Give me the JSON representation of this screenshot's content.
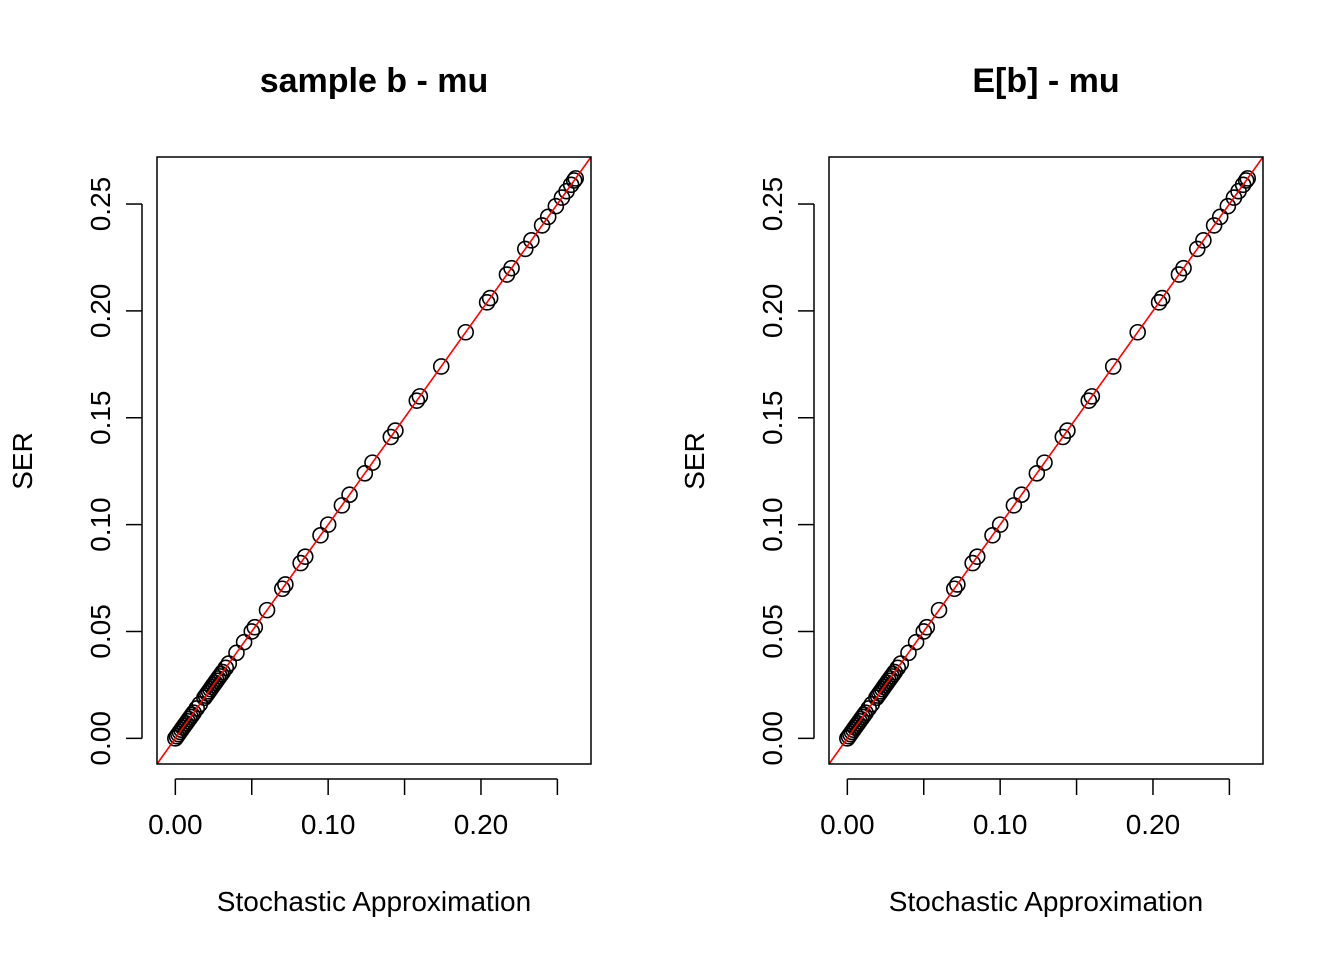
{
  "chart_data": [
    {
      "type": "scatter",
      "title": "sample b - mu",
      "xlabel": "Stochastic Approximation",
      "ylabel": "SER",
      "xlim": [
        -0.012,
        0.272
      ],
      "ylim": [
        -0.012,
        0.272
      ],
      "x_ticks": [
        0.0,
        0.05,
        0.1,
        0.15,
        0.2,
        0.25
      ],
      "x_tick_labels": [
        "0.00",
        "",
        "0.10",
        "",
        "0.20",
        ""
      ],
      "y_ticks": [
        0.0,
        0.05,
        0.1,
        0.15,
        0.2,
        0.25
      ],
      "y_tick_labels": [
        "0.00",
        "0.05",
        "0.10",
        "0.15",
        "0.20",
        "0.25"
      ],
      "reference_line": {
        "type": "abline",
        "intercept": 0,
        "slope": 1,
        "color": "#ff0000"
      },
      "point_style": {
        "shape": "open-circle",
        "color": "#000000"
      },
      "points": [
        [
          0.0,
          0.0
        ],
        [
          0.001,
          0.001
        ],
        [
          0.002,
          0.002
        ],
        [
          0.003,
          0.003
        ],
        [
          0.004,
          0.004
        ],
        [
          0.005,
          0.005
        ],
        [
          0.006,
          0.006
        ],
        [
          0.007,
          0.007
        ],
        [
          0.008,
          0.008
        ],
        [
          0.009,
          0.009
        ],
        [
          0.01,
          0.01
        ],
        [
          0.011,
          0.011
        ],
        [
          0.012,
          0.012
        ],
        [
          0.014,
          0.014
        ],
        [
          0.016,
          0.016
        ],
        [
          0.019,
          0.019
        ],
        [
          0.02,
          0.02
        ],
        [
          0.021,
          0.021
        ],
        [
          0.022,
          0.022
        ],
        [
          0.023,
          0.023
        ],
        [
          0.024,
          0.024
        ],
        [
          0.025,
          0.025
        ],
        [
          0.026,
          0.026
        ],
        [
          0.027,
          0.027
        ],
        [
          0.028,
          0.028
        ],
        [
          0.029,
          0.029
        ],
        [
          0.03,
          0.03
        ],
        [
          0.031,
          0.031
        ],
        [
          0.033,
          0.033
        ],
        [
          0.035,
          0.035
        ],
        [
          0.04,
          0.04
        ],
        [
          0.045,
          0.045
        ],
        [
          0.05,
          0.05
        ],
        [
          0.052,
          0.052
        ],
        [
          0.06,
          0.06
        ],
        [
          0.07,
          0.07
        ],
        [
          0.072,
          0.072
        ],
        [
          0.082,
          0.082
        ],
        [
          0.085,
          0.085
        ],
        [
          0.095,
          0.095
        ],
        [
          0.1,
          0.1
        ],
        [
          0.109,
          0.109
        ],
        [
          0.114,
          0.114
        ],
        [
          0.124,
          0.124
        ],
        [
          0.129,
          0.129
        ],
        [
          0.141,
          0.141
        ],
        [
          0.144,
          0.144
        ],
        [
          0.158,
          0.158
        ],
        [
          0.16,
          0.16
        ],
        [
          0.174,
          0.174
        ],
        [
          0.19,
          0.19
        ],
        [
          0.204,
          0.204
        ],
        [
          0.206,
          0.206
        ],
        [
          0.217,
          0.217
        ],
        [
          0.22,
          0.22
        ],
        [
          0.229,
          0.229
        ],
        [
          0.233,
          0.233
        ],
        [
          0.24,
          0.24
        ],
        [
          0.244,
          0.244
        ],
        [
          0.249,
          0.249
        ],
        [
          0.253,
          0.253
        ],
        [
          0.256,
          0.256
        ],
        [
          0.259,
          0.259
        ],
        [
          0.261,
          0.261
        ],
        [
          0.262,
          0.262
        ]
      ]
    },
    {
      "type": "scatter",
      "title": "E[b] - mu",
      "xlabel": "Stochastic Approximation",
      "ylabel": "SER",
      "xlim": [
        -0.012,
        0.272
      ],
      "ylim": [
        -0.012,
        0.272
      ],
      "x_ticks": [
        0.0,
        0.05,
        0.1,
        0.15,
        0.2,
        0.25
      ],
      "x_tick_labels": [
        "0.00",
        "",
        "0.10",
        "",
        "0.20",
        ""
      ],
      "y_ticks": [
        0.0,
        0.05,
        0.1,
        0.15,
        0.2,
        0.25
      ],
      "y_tick_labels": [
        "0.00",
        "0.05",
        "0.10",
        "0.15",
        "0.20",
        "0.25"
      ],
      "reference_line": {
        "type": "abline",
        "intercept": 0,
        "slope": 1,
        "color": "#ff0000"
      },
      "point_style": {
        "shape": "open-circle",
        "color": "#000000"
      },
      "points": [
        [
          0.0,
          0.0
        ],
        [
          0.001,
          0.001
        ],
        [
          0.002,
          0.002
        ],
        [
          0.003,
          0.003
        ],
        [
          0.004,
          0.004
        ],
        [
          0.005,
          0.005
        ],
        [
          0.006,
          0.006
        ],
        [
          0.007,
          0.007
        ],
        [
          0.008,
          0.008
        ],
        [
          0.009,
          0.009
        ],
        [
          0.01,
          0.01
        ],
        [
          0.011,
          0.011
        ],
        [
          0.012,
          0.012
        ],
        [
          0.014,
          0.014
        ],
        [
          0.016,
          0.016
        ],
        [
          0.019,
          0.019
        ],
        [
          0.02,
          0.02
        ],
        [
          0.021,
          0.021
        ],
        [
          0.022,
          0.022
        ],
        [
          0.023,
          0.023
        ],
        [
          0.024,
          0.024
        ],
        [
          0.025,
          0.025
        ],
        [
          0.026,
          0.026
        ],
        [
          0.027,
          0.027
        ],
        [
          0.028,
          0.028
        ],
        [
          0.029,
          0.029
        ],
        [
          0.03,
          0.03
        ],
        [
          0.031,
          0.031
        ],
        [
          0.033,
          0.033
        ],
        [
          0.035,
          0.035
        ],
        [
          0.04,
          0.04
        ],
        [
          0.045,
          0.045
        ],
        [
          0.05,
          0.05
        ],
        [
          0.052,
          0.052
        ],
        [
          0.06,
          0.06
        ],
        [
          0.07,
          0.07
        ],
        [
          0.072,
          0.072
        ],
        [
          0.082,
          0.082
        ],
        [
          0.085,
          0.085
        ],
        [
          0.095,
          0.095
        ],
        [
          0.1,
          0.1
        ],
        [
          0.109,
          0.109
        ],
        [
          0.114,
          0.114
        ],
        [
          0.124,
          0.124
        ],
        [
          0.129,
          0.129
        ],
        [
          0.141,
          0.141
        ],
        [
          0.144,
          0.144
        ],
        [
          0.158,
          0.158
        ],
        [
          0.16,
          0.16
        ],
        [
          0.174,
          0.174
        ],
        [
          0.19,
          0.19
        ],
        [
          0.204,
          0.204
        ],
        [
          0.206,
          0.206
        ],
        [
          0.217,
          0.217
        ],
        [
          0.22,
          0.22
        ],
        [
          0.229,
          0.229
        ],
        [
          0.233,
          0.233
        ],
        [
          0.24,
          0.24
        ],
        [
          0.244,
          0.244
        ],
        [
          0.249,
          0.249
        ],
        [
          0.253,
          0.253
        ],
        [
          0.256,
          0.256
        ],
        [
          0.259,
          0.259
        ],
        [
          0.261,
          0.261
        ],
        [
          0.262,
          0.262
        ]
      ]
    }
  ]
}
